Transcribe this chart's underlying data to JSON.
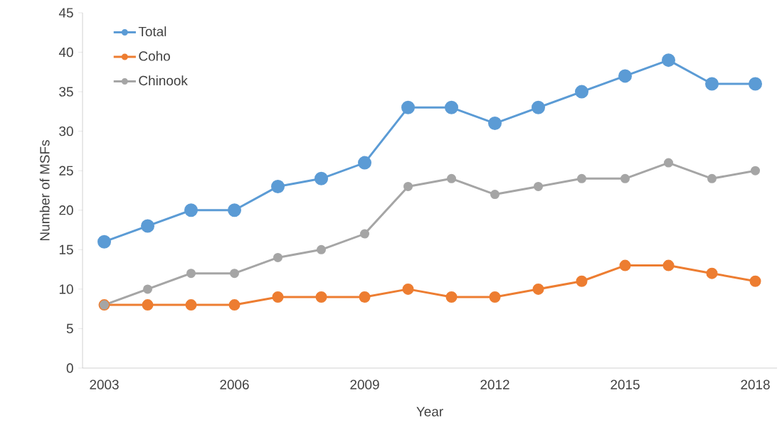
{
  "chart_data": {
    "type": "line",
    "xlabel": "Year",
    "ylabel": "Number of MSFs",
    "categories": [
      "2003",
      null,
      null,
      "2006",
      null,
      null,
      "2009",
      null,
      null,
      "2012",
      null,
      null,
      "2015",
      null,
      null,
      "2018"
    ],
    "series": [
      {
        "name": "Total",
        "color": "#5b9bd5",
        "values": [
          16,
          18,
          20,
          20,
          23,
          24,
          26,
          33,
          33,
          31,
          33,
          35,
          37,
          39,
          36,
          36
        ]
      },
      {
        "name": "Coho",
        "color": "#ed7d31",
        "values": [
          8,
          8,
          8,
          8,
          9,
          9,
          9,
          10,
          9,
          9,
          10,
          11,
          13,
          13,
          12,
          11
        ]
      },
      {
        "name": "Chinook",
        "color": "#a5a5a5",
        "values": [
          8,
          10,
          12,
          12,
          14,
          15,
          17,
          23,
          24,
          22,
          23,
          24,
          24,
          26,
          24,
          25
        ]
      }
    ],
    "ylim": [
      0,
      45
    ],
    "yticks": [
      0,
      5,
      10,
      15,
      20,
      25,
      30,
      35,
      40,
      45
    ],
    "grid": false,
    "legend": "top left",
    "marker": "circle",
    "line_style": "solid"
  }
}
